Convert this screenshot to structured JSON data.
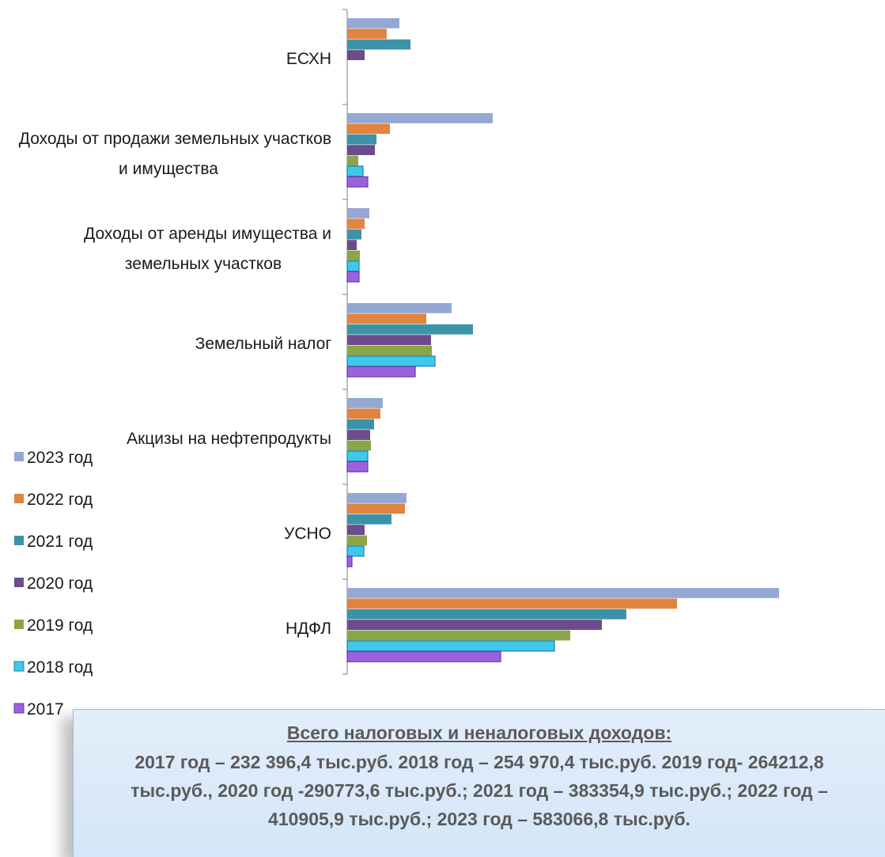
{
  "chart_data": {
    "type": "bar",
    "orientation": "horizontal",
    "categories": [
      "ЕСХН",
      "Доходы от продажи земельных участков и имущества",
      "Доходы от аренды имущества и земельных участков",
      "Земельный налог",
      "Акцизы на нефтепродукты",
      "УСНО",
      "НДФЛ"
    ],
    "category_lines": [
      [
        "ЕСХН"
      ],
      [
        "Доходы от продажи земельных участков",
        "и имущества"
      ],
      [
        "Доходы от аренды имущества и",
        "земельных участков"
      ],
      [
        "Земельный налог"
      ],
      [
        "Акцизы на нефтепродукты"
      ],
      [
        "УСНО"
      ],
      [
        "НДФЛ"
      ]
    ],
    "series": [
      {
        "name": "2023 год",
        "color": "#95a8d4",
        "values": [
          66,
          184,
          28,
          132,
          45,
          75,
          546
        ]
      },
      {
        "name": "2022 год",
        "color": "#e0843f",
        "values": [
          50,
          54,
          22,
          100,
          42,
          73,
          417
        ]
      },
      {
        "name": "2021 год",
        "color": "#3b93a8",
        "values": [
          80,
          37,
          18,
          159,
          34,
          56,
          353
        ]
      },
      {
        "name": "2020 год",
        "color": "#6c4c8c",
        "values": [
          22,
          35,
          12,
          106,
          29,
          22,
          322
        ]
      },
      {
        "name": "2019 год",
        "color": "#8aa648",
        "values": [
          0,
          14,
          16,
          107,
          30,
          25,
          282
        ]
      },
      {
        "name": "2018 год",
        "color": "#40c8ec",
        "values": [
          0,
          20,
          15,
          111,
          26,
          21,
          262
        ]
      },
      {
        "name": "2017",
        "color": "#9c62dc",
        "values": [
          0,
          26,
          15,
          86,
          26,
          6,
          194
        ]
      }
    ],
    "xlim": [
      0,
      600
    ],
    "title": "",
    "xlabel": "",
    "ylabel": "",
    "legend_position": "left"
  },
  "summary": {
    "title": "Всего налоговых и неналоговых доходов:",
    "body": "2017 год – 232 396,4 тыс.руб. 2018 год – 254 970,4 тыс.руб. 2019 год- 264212,8 тыс.руб., 2020 год -290773,6 тыс.руб.; 2021 год – 383354,9 тыс.руб.; 2022 год – 410905,9 тыс.руб.; 2023 год – 583066,8 тыс.руб."
  }
}
